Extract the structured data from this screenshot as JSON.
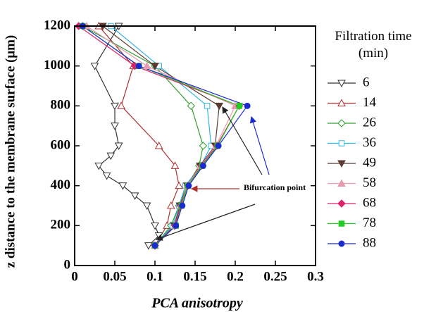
{
  "chart_data": {
    "type": "line",
    "xlabel": "PCA anisotropy",
    "ylabel": "z distance to the membrane surface (μm)",
    "legend_title": "Filtration time (min)",
    "annotation": "Bifurcation point",
    "xlim": [
      0,
      0.3
    ],
    "xticks": [
      0,
      0.05,
      0.1,
      0.15,
      0.2,
      0.25,
      0.3
    ],
    "ylim": [
      0,
      1200
    ],
    "yticks": [
      0,
      200,
      400,
      600,
      800,
      1000,
      1200
    ],
    "legend": "right",
    "series": [
      {
        "name": "6",
        "color": "#333333",
        "marker": "triangle-down",
        "filled": false,
        "x": [
          0.092,
          0.105,
          0.1,
          0.09,
          0.075,
          0.06,
          0.04,
          0.03,
          0.045,
          0.055,
          0.05,
          0.05,
          0.025,
          0.055
        ],
        "values": [
          100,
          150,
          200,
          300,
          350,
          400,
          450,
          500,
          550,
          600,
          700,
          800,
          1000,
          1200
        ]
      },
      {
        "name": "14",
        "color": "#b03030",
        "marker": "triangle-up",
        "filled": false,
        "x": [
          0.1,
          0.115,
          0.12,
          0.13,
          0.125,
          0.105,
          0.058,
          0.073,
          0.03
        ],
        "values": [
          100,
          200,
          300,
          400,
          500,
          600,
          800,
          1000,
          1200
        ]
      },
      {
        "name": "26",
        "color": "#2ca02c",
        "marker": "diamond",
        "filled": false,
        "x": [
          0.1,
          0.12,
          0.13,
          0.14,
          0.155,
          0.16,
          0.145,
          0.1,
          0.01
        ],
        "values": [
          100,
          200,
          300,
          400,
          500,
          600,
          800,
          1000,
          1200
        ]
      },
      {
        "name": "36",
        "color": "#33b5e5",
        "marker": "square",
        "filled": false,
        "x": [
          0.1,
          0.122,
          0.13,
          0.138,
          0.157,
          0.17,
          0.165,
          0.105,
          0.045
        ],
        "values": [
          100,
          200,
          300,
          400,
          500,
          600,
          800,
          1000,
          1200
        ]
      },
      {
        "name": "49",
        "color": "#5a3a30",
        "marker": "triangle-down",
        "filled": true,
        "x": [
          0.1,
          0.124,
          0.131,
          0.14,
          0.156,
          0.175,
          0.18,
          0.1,
          0.035
        ],
        "values": [
          100,
          200,
          300,
          400,
          500,
          600,
          800,
          1000,
          1200
        ]
      },
      {
        "name": "58",
        "color": "#e89ab0",
        "marker": "triangle-up",
        "filled": true,
        "x": [
          0.1,
          0.125,
          0.132,
          0.14,
          0.157,
          0.176,
          0.2,
          0.09,
          0.015
        ],
        "values": [
          100,
          200,
          300,
          400,
          500,
          600,
          800,
          1000,
          1200
        ]
      },
      {
        "name": "68",
        "color": "#e0206a",
        "marker": "diamond",
        "filled": true,
        "x": [
          0.1,
          0.125,
          0.132,
          0.141,
          0.158,
          0.177,
          0.205,
          0.075,
          0.005
        ],
        "values": [
          100,
          200,
          300,
          400,
          500,
          600,
          800,
          1000,
          1200
        ]
      },
      {
        "name": "78",
        "color": "#22cc22",
        "marker": "square",
        "filled": true,
        "x": [
          0.1,
          0.126,
          0.133,
          0.141,
          0.159,
          0.178,
          0.205,
          0.08,
          0.01
        ],
        "values": [
          100,
          200,
          300,
          400,
          500,
          600,
          800,
          1000,
          1200
        ]
      },
      {
        "name": "88",
        "color": "#1a2bd0",
        "marker": "circle",
        "filled": true,
        "x": [
          0.1,
          0.126,
          0.134,
          0.142,
          0.16,
          0.179,
          0.215,
          0.08,
          0.01
        ],
        "values": [
          100,
          200,
          300,
          400,
          500,
          600,
          800,
          1000,
          1200
        ]
      }
    ]
  }
}
